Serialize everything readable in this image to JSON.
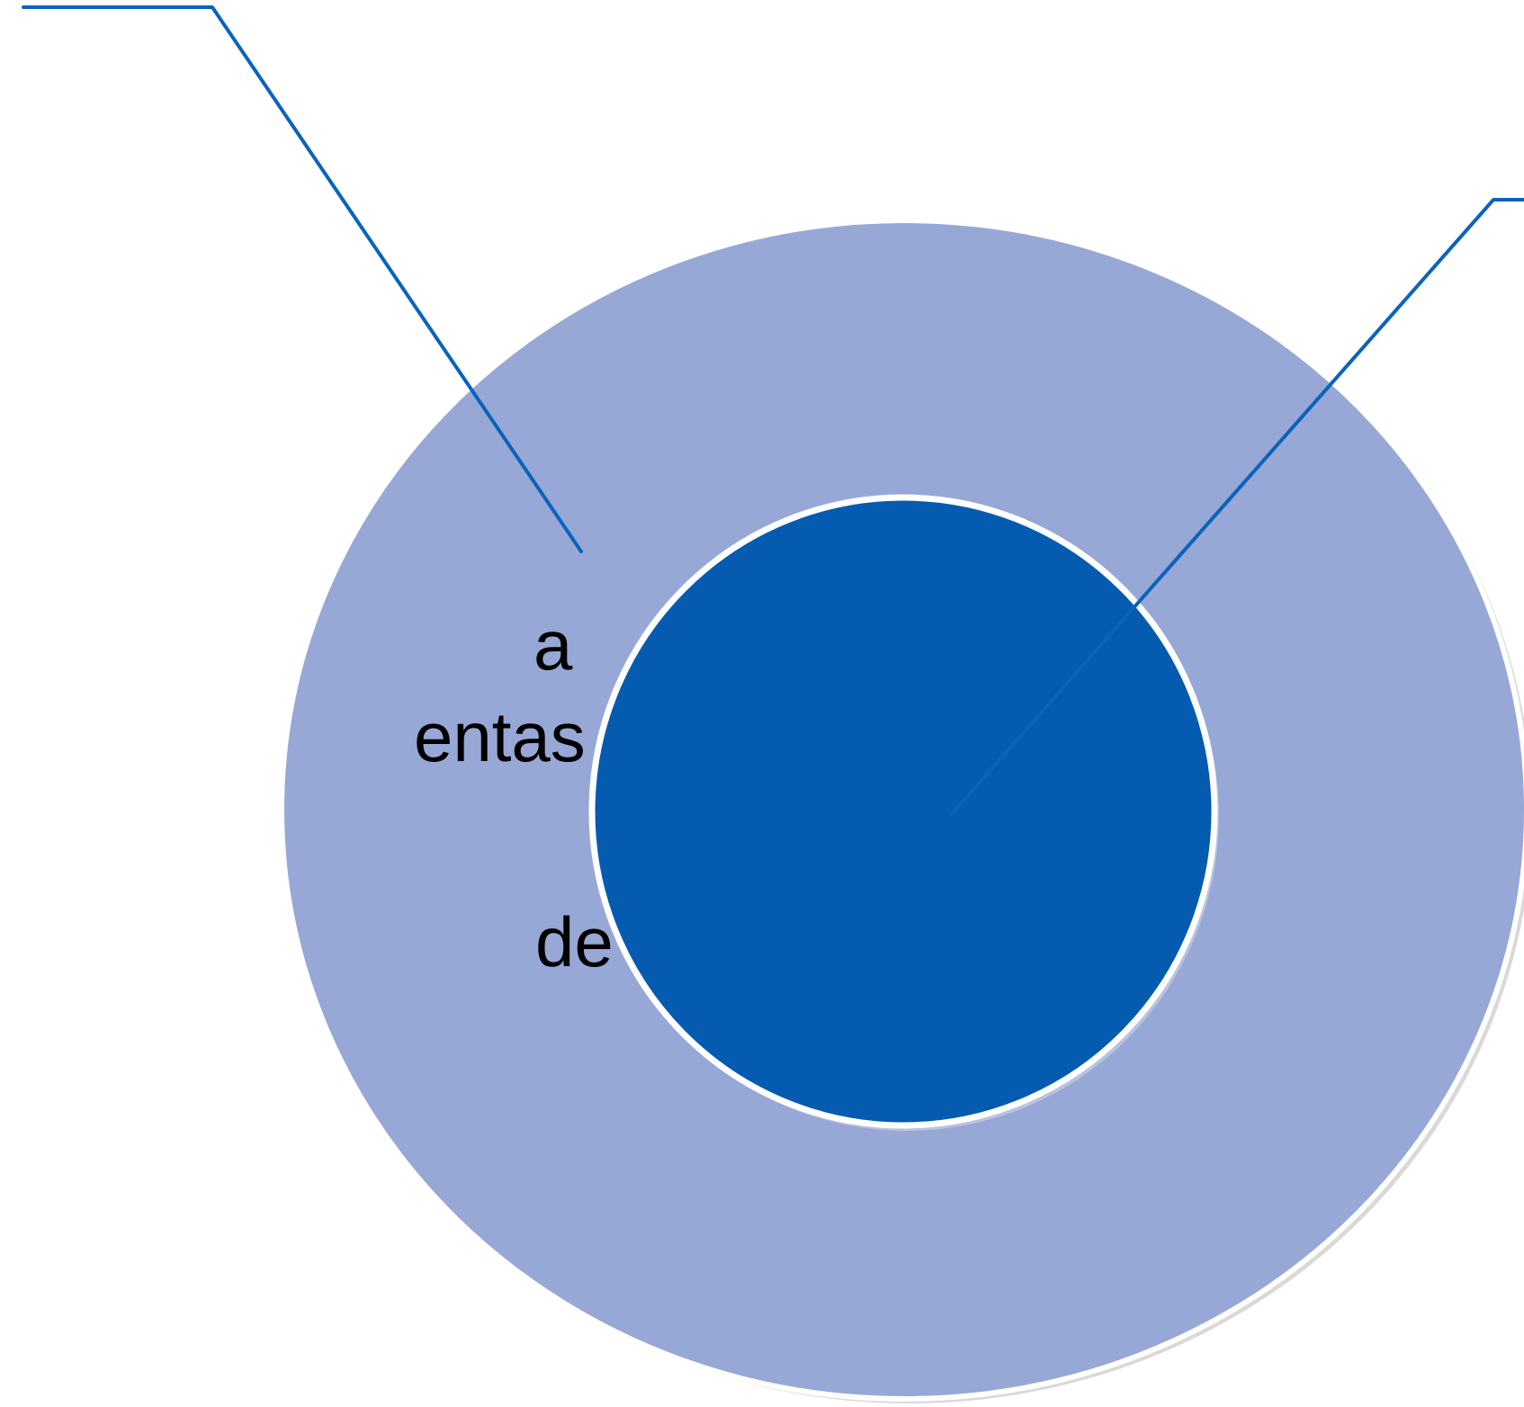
{
  "diagram": {
    "type": "concentric-circles",
    "colors": {
      "outer_circle": "#97A8D6",
      "inner_circle": "#045BB0",
      "outline": "#ffffff",
      "callout_line": "#0A63BC",
      "text": "#000000"
    },
    "text_fragments": [
      "a",
      "entas",
      "de"
    ]
  }
}
